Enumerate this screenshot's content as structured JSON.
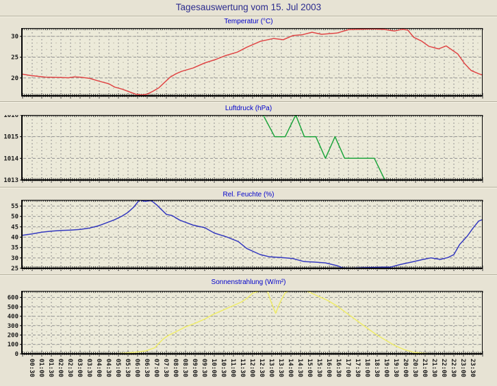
{
  "header": {
    "title": "Tagesauswertung vom 15. Jul 2003"
  },
  "colors": {
    "page_bg": "#e7e3d4",
    "plot_bg": "#ecead9",
    "grid_major": "#8f8f8f",
    "grid_minor": "#b3b0a0",
    "axis": "#000000",
    "main_title": "#2b2b8e",
    "panel_title": "#0000cc",
    "temperature_line": "#e04545",
    "pressure_line": "#1ca43c",
    "humidity_line": "#3338c0",
    "radiation_line": "#efec68"
  },
  "x_axis": {
    "labels": [
      "00:30",
      "01:00",
      "01:30",
      "02:00",
      "02:30",
      "03:00",
      "03:30",
      "04:00",
      "04:30",
      "05:00",
      "05:30",
      "06:00",
      "06:30",
      "07:00",
      "07:30",
      "08:00",
      "08:30",
      "09:00",
      "09:30",
      "10:00",
      "10:30",
      "11:00",
      "11:30",
      "12:00",
      "12:30",
      "13:00",
      "13:30",
      "14:00",
      "14:30",
      "15:00",
      "15:30",
      "16:00",
      "16:30",
      "17:00",
      "17:30",
      "18:00",
      "18:30",
      "19:00",
      "19:30",
      "20:00",
      "20:30",
      "21:00",
      "21:30",
      "22:00",
      "22:30",
      "23:00",
      "23:30"
    ]
  },
  "chart_data": [
    {
      "type": "line",
      "title": "Temperatur (°C)",
      "color_key": "temperature_line",
      "ylim": [
        15.7,
        32
      ],
      "yticks": [
        20,
        25,
        30
      ],
      "series": [
        [
          0,
          20.9
        ],
        [
          0.4,
          20.6
        ],
        [
          0.8,
          20.4
        ],
        [
          1.2,
          20.2
        ],
        [
          1.6,
          20.15
        ],
        [
          2,
          20.1
        ],
        [
          2.4,
          20.05
        ],
        [
          2.7,
          20.25
        ],
        [
          3,
          20.2
        ],
        [
          3.5,
          19.9
        ],
        [
          4,
          19.2
        ],
        [
          4.5,
          18.6
        ],
        [
          4.8,
          17.8
        ],
        [
          5.2,
          17.3
        ],
        [
          5.6,
          16.6
        ],
        [
          5.9,
          16.1
        ],
        [
          6.2,
          15.9
        ],
        [
          6.5,
          16.1
        ],
        [
          6.8,
          16.8
        ],
        [
          7.1,
          17.6
        ],
        [
          7.4,
          18.9
        ],
        [
          7.7,
          20.2
        ],
        [
          8,
          21.0
        ],
        [
          8.3,
          21.6
        ],
        [
          8.9,
          22.4
        ],
        [
          9.5,
          23.6
        ],
        [
          10.1,
          24.5
        ],
        [
          10.6,
          25.4
        ],
        [
          11.2,
          26.2
        ],
        [
          11.7,
          27.4
        ],
        [
          12.4,
          28.8
        ],
        [
          13.1,
          29.5
        ],
        [
          13.6,
          29.2
        ],
        [
          14.1,
          30.2
        ],
        [
          14.6,
          30.4
        ],
        [
          15.1,
          31.0
        ],
        [
          15.6,
          30.5
        ],
        [
          16.4,
          30.8
        ],
        [
          17,
          31.6
        ],
        [
          17.6,
          31.7
        ],
        [
          18.2,
          31.8
        ],
        [
          18.8,
          31.7
        ],
        [
          19.4,
          31.3
        ],
        [
          19.8,
          31.7
        ],
        [
          20.1,
          31.5
        ],
        [
          20.4,
          29.8
        ],
        [
          20.8,
          28.9
        ],
        [
          21.2,
          27.6
        ],
        [
          21.7,
          27.0
        ],
        [
          22.1,
          27.7
        ],
        [
          22.7,
          25.8
        ],
        [
          23.05,
          23.5
        ],
        [
          23.4,
          21.8
        ],
        [
          23.8,
          21.0
        ],
        [
          24,
          20.7
        ]
      ]
    },
    {
      "type": "line",
      "title": "Luftdruck (hPa)",
      "color_key": "pressure_line",
      "ylim": [
        1013,
        1016
      ],
      "yticks": [
        1013,
        1014,
        1015,
        1016
      ],
      "series": [
        [
          12.55,
          1016
        ],
        [
          13.15,
          1015
        ],
        [
          13.7,
          1015
        ],
        [
          14.25,
          1016
        ],
        [
          14.7,
          1015
        ],
        [
          15.3,
          1015
        ],
        [
          15.8,
          1014
        ],
        [
          16.3,
          1015
        ],
        [
          16.8,
          1014
        ],
        [
          18.35,
          1014
        ],
        [
          18.9,
          1013
        ]
      ]
    },
    {
      "type": "line",
      "title": "Rel. Feuchte (%)",
      "color_key": "humidity_line",
      "ylim": [
        25,
        58
      ],
      "yticks": [
        25,
        30,
        35,
        40,
        45,
        50,
        55
      ],
      "series": [
        [
          0,
          40.9
        ],
        [
          0.5,
          41.6
        ],
        [
          1,
          42.4
        ],
        [
          1.5,
          42.9
        ],
        [
          2,
          43.2
        ],
        [
          2.5,
          43.4
        ],
        [
          3,
          43.7
        ],
        [
          3.5,
          44.4
        ],
        [
          4,
          45.6
        ],
        [
          4.4,
          47.0
        ],
        [
          4.8,
          48.4
        ],
        [
          5.2,
          50.2
        ],
        [
          5.5,
          52.0
        ],
        [
          5.8,
          54.5
        ],
        [
          6.1,
          58.0
        ],
        [
          6.4,
          57.2
        ],
        [
          6.7,
          57.8
        ],
        [
          7,
          55.5
        ],
        [
          7.5,
          51.0
        ],
        [
          7.8,
          50.4
        ],
        [
          8.2,
          48.2
        ],
        [
          8.9,
          45.8
        ],
        [
          9.5,
          44.6
        ],
        [
          10,
          42.0
        ],
        [
          10.65,
          40.1
        ],
        [
          11.25,
          37.9
        ],
        [
          11.7,
          34.5
        ],
        [
          12.4,
          31.6
        ],
        [
          12.9,
          30.5
        ],
        [
          13.5,
          30.2
        ],
        [
          14.1,
          29.7
        ],
        [
          14.7,
          28.2
        ],
        [
          15.2,
          28.0
        ],
        [
          15.8,
          27.6
        ],
        [
          16.4,
          26.3
        ],
        [
          16.7,
          25.2
        ],
        [
          17.2,
          25.1
        ],
        [
          17.7,
          25.3
        ],
        [
          18.2,
          25.4
        ],
        [
          18.7,
          25.5
        ],
        [
          19.2,
          25.6
        ],
        [
          19.7,
          26.8
        ],
        [
          20.3,
          28.0
        ],
        [
          20.9,
          29.3
        ],
        [
          21.3,
          30.0
        ],
        [
          21.8,
          29.3
        ],
        [
          22.2,
          30.2
        ],
        [
          22.5,
          31.6
        ],
        [
          22.8,
          36.5
        ],
        [
          23.2,
          40.5
        ],
        [
          23.5,
          44.4
        ],
        [
          23.8,
          47.8
        ],
        [
          24,
          48.5
        ]
      ]
    },
    {
      "type": "line",
      "title": "Sonnenstrahlung (W/m²)",
      "color_key": "radiation_line",
      "ylim": [
        0,
        670
      ],
      "yticks": [
        0,
        100,
        200,
        300,
        400,
        500,
        600
      ],
      "series": [
        [
          0,
          0
        ],
        [
          4.8,
          0
        ],
        [
          5.2,
          5
        ],
        [
          5.6,
          12
        ],
        [
          6,
          20
        ],
        [
          6.4,
          30
        ],
        [
          6.9,
          65
        ],
        [
          7.05,
          100
        ],
        [
          7.35,
          160
        ],
        [
          7.6,
          195
        ],
        [
          8.05,
          240
        ],
        [
          8.5,
          287
        ],
        [
          9,
          325
        ],
        [
          9.5,
          370
        ],
        [
          9.95,
          420
        ],
        [
          10.4,
          460
        ],
        [
          10.9,
          505
        ],
        [
          11.4,
          550
        ],
        [
          11.7,
          590
        ],
        [
          12,
          645
        ],
        [
          12.4,
          672
        ],
        [
          12.75,
          682
        ],
        [
          12.95,
          560
        ],
        [
          13.2,
          432
        ],
        [
          13.45,
          555
        ],
        [
          13.7,
          650
        ],
        [
          14,
          688
        ],
        [
          14.4,
          695
        ],
        [
          14.9,
          663
        ],
        [
          15.4,
          615
        ],
        [
          15.9,
          570
        ],
        [
          16.4,
          510
        ],
        [
          16.9,
          435
        ],
        [
          17.4,
          360
        ],
        [
          17.9,
          285
        ],
        [
          18.4,
          212
        ],
        [
          18.9,
          150
        ],
        [
          19.4,
          90
        ],
        [
          19.9,
          46
        ],
        [
          20.4,
          17
        ],
        [
          20.9,
          5
        ],
        [
          21.3,
          0
        ],
        [
          24,
          0
        ]
      ]
    }
  ]
}
